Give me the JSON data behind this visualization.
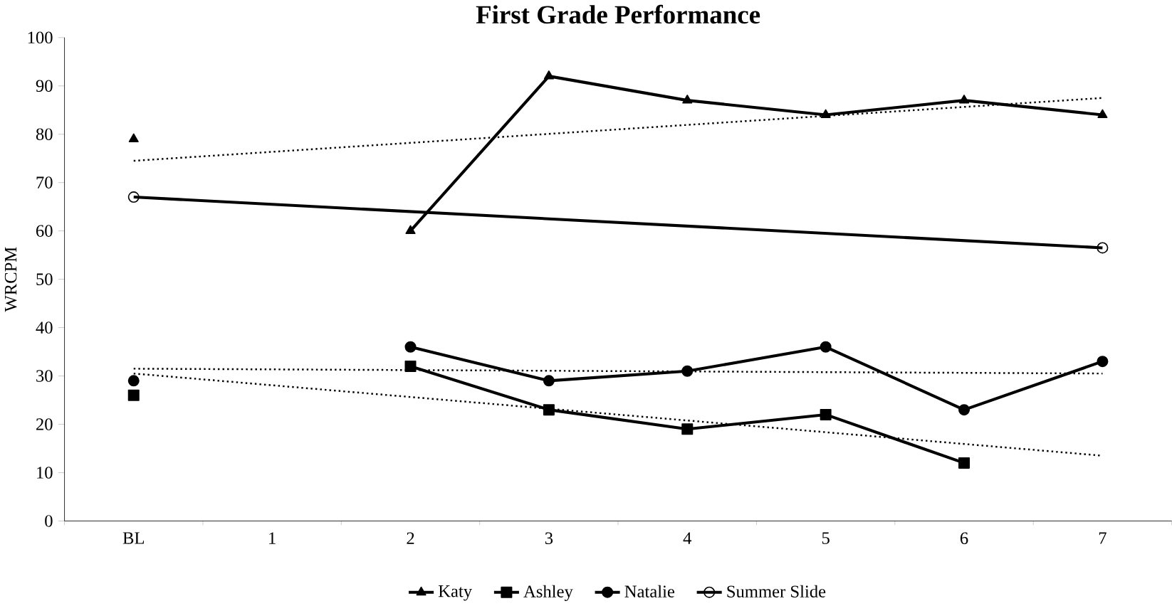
{
  "chart_data": {
    "type": "line",
    "title": "First Grade Performance",
    "ylabel": "WRCPM",
    "categories": [
      "BL",
      "1",
      "2",
      "3",
      "4",
      "5",
      "6",
      "7"
    ],
    "ylim": [
      0,
      100
    ],
    "yticks": [
      0,
      10,
      20,
      30,
      40,
      50,
      60,
      70,
      80,
      90,
      100
    ],
    "legend": "bottom",
    "grid": false,
    "series": [
      {
        "name": "Katy",
        "color": "#000000",
        "marker": "triangle",
        "values": [
          79,
          null,
          60,
          92,
          87,
          84,
          87,
          84
        ]
      },
      {
        "name": "Ashley",
        "color": "#000000",
        "marker": "square",
        "values": [
          26,
          null,
          32,
          23,
          19,
          22,
          12,
          null
        ]
      },
      {
        "name": "Natalie",
        "color": "#000000",
        "marker": "circle",
        "values": [
          29,
          null,
          36,
          29,
          31,
          36,
          23,
          33
        ]
      },
      {
        "name": "Summer Slide",
        "color": "#000000",
        "marker": "open circle",
        "x": [
          "BL",
          "7"
        ],
        "values": [
          67,
          56.5
        ]
      },
      {
        "color": "#000000",
        "marker": "none",
        "line_style": "dotted",
        "x": [
          "BL",
          "7"
        ],
        "values": [
          74.5,
          87.5
        ]
      },
      {
        "color": "#000000",
        "marker": "none",
        "line_style": "dotted",
        "x": [
          "BL",
          "7"
        ],
        "values": [
          31.5,
          30.5
        ]
      },
      {
        "color": "#000000",
        "marker": "none",
        "line_style": "dotted",
        "x": [
          "BL",
          "7"
        ],
        "values": [
          30.5,
          13.5
        ]
      }
    ]
  }
}
